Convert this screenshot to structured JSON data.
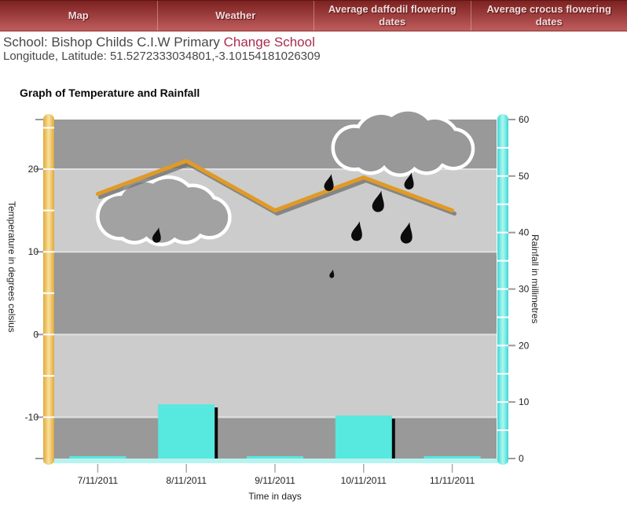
{
  "nav": {
    "tabs": [
      {
        "label": "Map"
      },
      {
        "label": "Weather"
      },
      {
        "label": "Average daffodil flowering dates"
      },
      {
        "label": "Average crocus flowering dates"
      }
    ]
  },
  "header": {
    "school_label": "School: Bishop Childs C.I.W Primary",
    "change_school_label": "Change School",
    "coords_label": "Longitude, Latitude: 51.5272333034801,-3.10154181026309"
  },
  "chart_title": "Graph of Temperature and Rainfall",
  "colors": {
    "nav_top": "#7c2121",
    "nav_bottom": "#c05e5e",
    "band_dark": "#999999",
    "band_light": "#cccccc",
    "gridline": "#e2e2e2",
    "temp_axis_edge": "#dfa93c",
    "temp_axis_center": "#f8dc94",
    "rain_axis_edge": "#3ed8d2",
    "rain_axis_center": "#a5f4ef",
    "temp_line": "#e09a26",
    "temp_line_shadow": "#6e6e6e",
    "rain_bar": "#57e8e0",
    "rain_bar_shadow": "#0b0b0b",
    "baseline_strip": "#b7f3ef",
    "tick_dash": "#9a9a9a",
    "tick_text": "#222222",
    "cloud_fill_lower": "#a2a2a2",
    "cloud_fill_upper": "#999999",
    "cloud_outline": "#ffffff",
    "raindrop": "#0c0c0c"
  },
  "chart_data": {
    "type": "combo",
    "categories": [
      "7/11/2011",
      "8/11/2011",
      "9/11/2011",
      "10/11/2011",
      "11/11/2011"
    ],
    "series": [
      {
        "name": "Temperature",
        "type": "line",
        "axis": "left",
        "values": [
          17,
          21,
          15,
          19,
          15
        ]
      },
      {
        "name": "Rainfall",
        "type": "bar",
        "axis": "right",
        "values": [
          0.3,
          9.6,
          0.3,
          7.6,
          0.3
        ]
      }
    ],
    "title": "Graph of Temperature and Rainfall",
    "xlabel": "Time in days",
    "ylabel_left": "Temperature in degrees celsius",
    "ylabel_right": "Rainfall in millimetres",
    "left_axis": {
      "min": -15,
      "max": 26,
      "tick_labels": [
        20,
        10,
        0,
        -10
      ],
      "minor_step": 5
    },
    "right_axis": {
      "min": 0,
      "max": 60,
      "tick_labels": [
        60,
        50,
        40,
        30,
        20,
        10,
        0
      ],
      "minor_step": 5
    },
    "grid": "horizontal-bands",
    "legend": "none",
    "annotations": {
      "clouds": [
        {
          "kind": "rain-cloud",
          "x": 128,
          "y": 238,
          "w": 154,
          "h": 62,
          "fill": "lower"
        },
        {
          "kind": "rain-cloud",
          "x": 424,
          "y": 152,
          "w": 170,
          "h": 60,
          "fill": "upper"
        }
      ],
      "raindrops": [
        {
          "x": 197,
          "y": 288,
          "s": 0.9
        },
        {
          "x": 416,
          "y": 220,
          "s": 1.0
        },
        {
          "x": 478,
          "y": 241,
          "s": 1.25
        },
        {
          "x": 518,
          "y": 218,
          "s": 1.0
        },
        {
          "x": 451,
          "y": 280,
          "s": 1.15
        },
        {
          "x": 514,
          "y": 281,
          "s": 1.25
        },
        {
          "x": 421,
          "y": 342,
          "s": 0.5
        }
      ]
    }
  }
}
